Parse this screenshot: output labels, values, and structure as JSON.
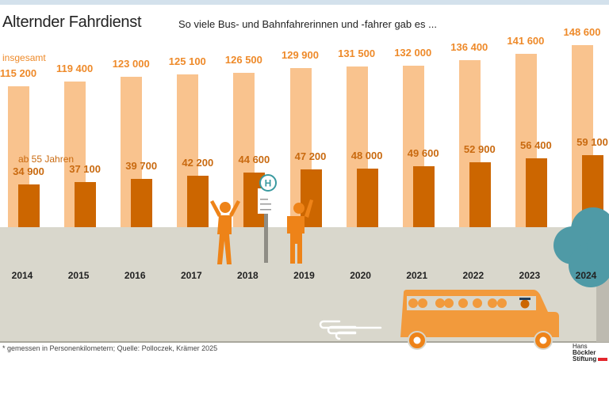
{
  "title": "Alternder Fahrdienst",
  "subtitle": "So viele Bus- und Bahnfahrerinnen und -fahrer gab es ...",
  "footnote": "* gemessen in Personenkilometern; Quelle: Polloczek, Krämer 2025",
  "logo": {
    "line1": "Hans",
    "line1b": "Böckler",
    "line2": "Stiftung"
  },
  "colors": {
    "total": "#f9c38e",
    "over55": "#cc6600",
    "total_label": "#ee8a2a",
    "over55_label": "#c96a10",
    "ground": "#d9d7cc",
    "tree": "#4f9aa6",
    "bus": "#f29a3c"
  },
  "chart_data": {
    "type": "bar",
    "title": "So viele Bus- und Bahnfahrerinnen und -fahrer gab es ...",
    "categories": [
      "2014",
      "2015",
      "2016",
      "2017",
      "2018",
      "2019",
      "2020",
      "2021",
      "2022",
      "2023",
      "2024"
    ],
    "series": [
      {
        "name": "insgesamt",
        "values": [
          115200,
          119400,
          123000,
          125100,
          126500,
          129900,
          131500,
          132000,
          136400,
          141600,
          148600
        ],
        "labels": [
          "115 200",
          "119 400",
          "123 000",
          "125 100",
          "126 500",
          "129 900",
          "131 500",
          "132 000",
          "136 400",
          "141 600",
          "148 600"
        ]
      },
      {
        "name": "ab 55 Jahren",
        "values": [
          34900,
          37100,
          39700,
          42200,
          44600,
          47200,
          48000,
          49600,
          52900,
          56400,
          59100
        ],
        "labels": [
          "34 900",
          "37 100",
          "39 700",
          "42 200",
          "44 600",
          "47 200",
          "48 000",
          "49 600",
          "52 900",
          "56 400",
          "59 100"
        ]
      }
    ],
    "ylim": [
      0,
      148600
    ],
    "grid": false
  }
}
